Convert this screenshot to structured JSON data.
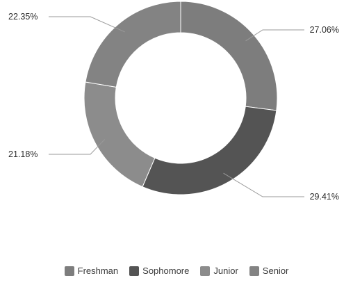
{
  "chart_data": {
    "type": "pie",
    "variant": "donut",
    "title": "",
    "categories": [
      "Freshman",
      "Sophomore",
      "Junior",
      "Senior"
    ],
    "values": [
      27.06,
      29.41,
      21.18,
      22.35
    ],
    "labels": [
      "27.06%",
      "29.41%",
      "21.18%",
      "22.35%"
    ],
    "colors": [
      "#7d7d7d",
      "#545454",
      "#8c8c8c",
      "#838383"
    ],
    "legend_position": "bottom",
    "start_angle": "top, clockwise"
  }
}
